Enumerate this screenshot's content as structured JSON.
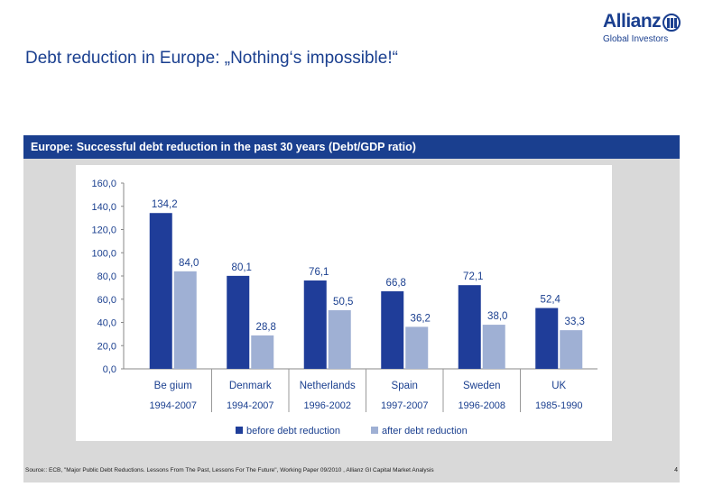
{
  "header": {
    "title": "Debt reduction in Europe: „Nothing‘s impossible!“",
    "logo_name": "Allianz",
    "logo_sub": "Global Investors"
  },
  "banner": {
    "title": "Europe: Successful debt reduction in the past 30 years (Debt/GDP ratio)"
  },
  "footer": {
    "source": "Source:: ECB, \"Major Public Debt Reductions. Lessons From The Past, Lessons For The Future\", Working Paper 09/2010 , Allianz GI Capital Market Analysis",
    "page_number": "4"
  },
  "colors": {
    "brand": "#1a3f8f",
    "before": "#1f3d99",
    "after": "#9fb0d4"
  },
  "chart_data": {
    "type": "bar",
    "categories": [
      "Be gium",
      "Denmark",
      "Netherlands",
      "Spain",
      "Sweden",
      "UK"
    ],
    "periods": [
      "1994-2007",
      "1994-2007",
      "1996-2002",
      "1997-2007",
      "1996-2008",
      "1985-1990"
    ],
    "series": [
      {
        "name": "before debt reduction",
        "values": [
          134.2,
          80.1,
          76.1,
          66.8,
          72.1,
          52.4
        ],
        "labels": [
          "134,2",
          "80,1",
          "76,1",
          "66,8",
          "72,1",
          "52,4"
        ]
      },
      {
        "name": "after debt reduction",
        "values": [
          84.0,
          28.8,
          50.5,
          36.2,
          38.0,
          33.3
        ],
        "labels": [
          "84,0",
          "28,8",
          "50,5",
          "36,2",
          "38,0",
          "33,3"
        ]
      }
    ],
    "yticks": [
      "0,0",
      "20,0",
      "40,0",
      "60,0",
      "80,0",
      "100,0",
      "120,0",
      "140,0",
      "160,0"
    ],
    "ylim": [
      0,
      160
    ],
    "legend_position": "bottom",
    "grid": false
  }
}
